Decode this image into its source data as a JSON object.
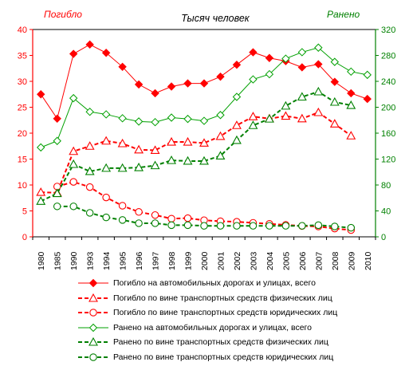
{
  "chart_data": {
    "type": "line",
    "title": "Тысяч человек",
    "left_axis_label": "Погибло",
    "right_axis_label": "Ранено",
    "categories": [
      "1980",
      "1985",
      "1990",
      "1993",
      "1994",
      "1995",
      "1996",
      "1997",
      "1998",
      "1999",
      "2000",
      "2001",
      "2002",
      "2003",
      "2004",
      "2005",
      "2006",
      "2007",
      "2008",
      "2009",
      "2010"
    ],
    "left_axis": {
      "min": 0,
      "max": 40,
      "ticks": [
        "0",
        "5",
        "10",
        "15",
        "20",
        "25",
        "30",
        "35",
        "40"
      ]
    },
    "right_axis": {
      "min": 0,
      "max": 320,
      "ticks": [
        "0",
        "40",
        "80",
        "120",
        "160",
        "200",
        "240",
        "280",
        "320"
      ]
    },
    "grid": false,
    "series": [
      {
        "name": "Погибло на автомобильных дорогах и улицах, всего",
        "axis": "left",
        "color": "#ff0000",
        "line": "solid",
        "marker": "diamond",
        "marker_fill": "#ff0000",
        "values": [
          27.5,
          22.8,
          35.3,
          37.1,
          35.5,
          32.8,
          29.4,
          27.7,
          29.0,
          29.6,
          29.6,
          30.9,
          33.2,
          35.6,
          34.5,
          33.9,
          32.7,
          33.3,
          29.9,
          27.7,
          26.6
        ]
      },
      {
        "name": "Погибло по вине транспортных средств физических лиц",
        "axis": "left",
        "color": "#ff0000",
        "line": "dashed",
        "marker": "triangle",
        "marker_fill": "#ffffff",
        "values": [
          8.6,
          8.5,
          16.5,
          17.5,
          18.5,
          18.0,
          16.8,
          16.7,
          18.3,
          18.3,
          18.1,
          19.4,
          21.5,
          23.2,
          22.8,
          23.3,
          22.8,
          24.0,
          21.8,
          19.5,
          null
        ]
      },
      {
        "name": "Погибло по вине транспортных средств юридических лиц",
        "axis": "left",
        "color": "#ff0000",
        "line": "dashed",
        "marker": "circle",
        "marker_fill": "#ffffff",
        "values": [
          null,
          9.7,
          10.6,
          9.6,
          7.6,
          6.0,
          4.8,
          4.2,
          3.5,
          3.6,
          3.2,
          3.0,
          2.9,
          2.7,
          2.5,
          2.3,
          2.1,
          2.0,
          1.6,
          1.3,
          null
        ]
      },
      {
        "name": "Ранено на автомобильных дорогах и улицах, всего",
        "axis": "right",
        "color": "#00a000",
        "line": "solid",
        "marker": "diamond",
        "marker_fill": "#ffffff",
        "values": [
          138,
          148,
          214,
          193,
          189,
          183,
          178,
          177,
          184,
          182,
          179,
          188,
          216,
          243,
          251,
          275,
          285,
          292,
          270,
          255,
          250
        ]
      },
      {
        "name": "Ранено по вине транспортных средств физических лиц",
        "axis": "right",
        "color": "#008000",
        "line": "dashed",
        "marker": "triangle",
        "marker_fill": "#ffffff",
        "values": [
          55,
          67,
          112,
          101,
          106,
          106,
          107,
          110,
          118,
          117,
          117,
          125,
          149,
          172,
          182,
          202,
          216,
          224,
          208,
          203,
          null
        ]
      },
      {
        "name": "Ранено по вине транспортных средств юридических лиц",
        "axis": "right",
        "color": "#008000",
        "line": "dashed",
        "marker": "circle",
        "marker_fill": "#ffffff",
        "values": [
          null,
          47,
          47,
          37,
          30,
          26,
          21,
          21,
          18,
          18,
          17,
          17,
          17,
          17,
          17,
          17,
          17,
          18,
          16,
          14,
          null
        ]
      }
    ]
  }
}
